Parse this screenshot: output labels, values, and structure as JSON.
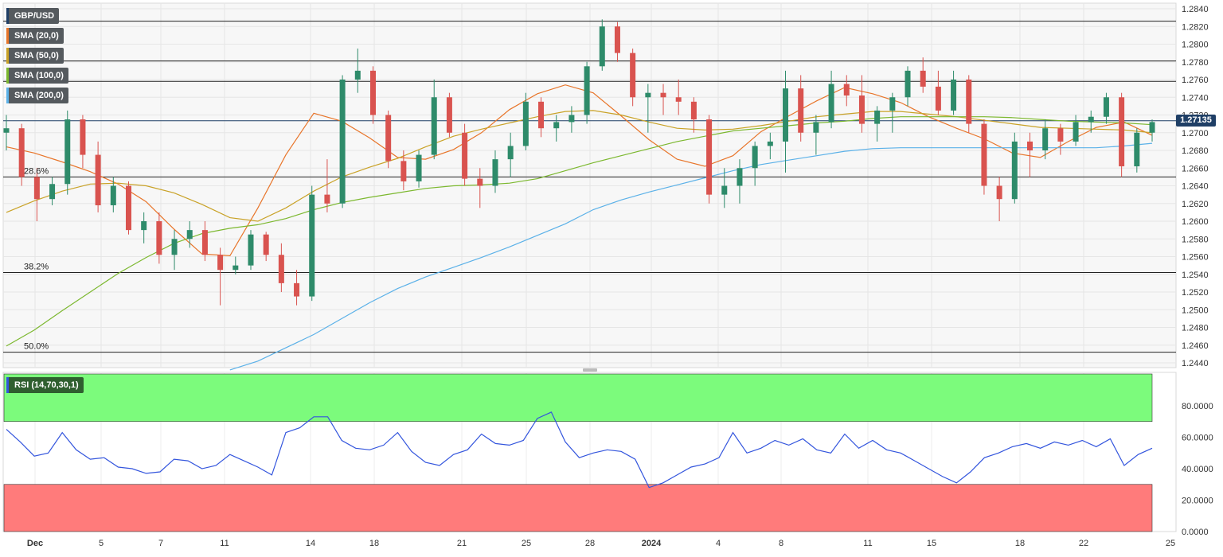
{
  "chart_data": [
    {
      "type": "candlestick",
      "title": "GBP/USD",
      "current_price": "1.27135",
      "x_tick_labels": [
        "Dec",
        "5",
        "7",
        "11",
        "14",
        "18",
        "21",
        "25",
        "28",
        "2024",
        "4",
        "8",
        "11",
        "15",
        "18",
        "22",
        "25"
      ],
      "y_ticks": [
        "1.2840",
        "1.2820",
        "1.2800",
        "1.2780",
        "1.2760",
        "1.2740",
        "1.2720",
        "1.2700",
        "1.2680",
        "1.2660",
        "1.2640",
        "1.2620",
        "1.2600",
        "1.2580",
        "1.2560",
        "1.2540",
        "1.2520",
        "1.2500",
        "1.2480",
        "1.2460",
        "1.2440"
      ],
      "ylim": [
        1.2435,
        1.2845
      ],
      "horizontal_levels": [
        1.2826,
        1.2781,
        1.2758,
        1.265,
        1.2542,
        1.2452
      ],
      "fib_labels": [
        {
          "label": "28.6%",
          "level": 1.265
        },
        {
          "label": "38.2%",
          "level": 1.2542
        },
        {
          "label": "50.0%",
          "level": 1.2452
        }
      ],
      "grid": true,
      "legend_placement": "top-left",
      "series": [
        {
          "name": "SMA (20,0)",
          "color": "#e8752a",
          "values": [
            1.2684,
            1.2677,
            1.2667,
            1.2656,
            1.2642,
            1.2622,
            1.2591,
            1.2563,
            1.2561,
            1.2615,
            1.2675,
            1.2722,
            1.2713,
            1.2694,
            1.2672,
            1.267,
            1.2681,
            1.27,
            1.2726,
            1.2744,
            1.2754,
            1.2745,
            1.2719,
            1.2692,
            1.267,
            1.2662,
            1.2674,
            1.2701,
            1.2719,
            1.2736,
            1.2751,
            1.2744,
            1.2734,
            1.2718,
            1.2705,
            1.2693,
            1.2677,
            1.2672,
            1.269,
            1.2706,
            1.2712,
            1.2697
          ]
        },
        {
          "name": "SMA (50,0)",
          "color": "#c9a227",
          "values": [
            1.261,
            1.2623,
            1.2634,
            1.2642,
            1.2643,
            1.264,
            1.2632,
            1.2619,
            1.2604,
            1.26,
            1.2615,
            1.2634,
            1.265,
            1.2661,
            1.2671,
            1.2684,
            1.2696,
            1.2704,
            1.2711,
            1.2718,
            1.2724,
            1.2725,
            1.272,
            1.2712,
            1.2705,
            1.2703,
            1.2704,
            1.2708,
            1.2713,
            1.2718,
            1.2721,
            1.2724,
            1.2724,
            1.2721,
            1.2718,
            1.2714,
            1.271,
            1.2706,
            1.2705,
            1.2704,
            1.2703,
            1.27
          ]
        },
        {
          "name": "SMA (100,0)",
          "color": "#7cb82f",
          "values": [
            1.2459,
            1.2477,
            1.2499,
            1.252,
            1.2541,
            1.2559,
            1.2575,
            1.2586,
            1.2592,
            1.2596,
            1.2603,
            1.2613,
            1.2621,
            1.2627,
            1.2632,
            1.2637,
            1.264,
            1.2641,
            1.2643,
            1.2648,
            1.2657,
            1.2666,
            1.2674,
            1.2682,
            1.269,
            1.2696,
            1.2702,
            1.2705,
            1.2708,
            1.2711,
            1.2713,
            1.2716,
            1.2718,
            1.2718,
            1.2718,
            1.2718,
            1.2717,
            1.2715,
            1.2713,
            1.2712,
            1.2711,
            1.2709
          ]
        },
        {
          "name": "SMA (200,0)",
          "color": "#5bb1e8",
          "values": [
            null,
            null,
            null,
            null,
            null,
            null,
            null,
            null,
            1.2432,
            1.2442,
            1.2457,
            1.2472,
            1.249,
            1.2508,
            1.2524,
            1.2537,
            1.2548,
            1.2559,
            1.2571,
            1.2584,
            1.2597,
            1.2613,
            1.2624,
            1.2633,
            1.2641,
            1.2649,
            1.2657,
            1.2664,
            1.2669,
            1.2674,
            1.2679,
            1.2682,
            1.2683,
            1.2683,
            1.2683,
            1.2683,
            1.2683,
            1.2683,
            1.2683,
            1.2683,
            1.2685,
            1.2688
          ]
        }
      ],
      "candles": [
        [
          1.27,
          1.272,
          1.268,
          1.2705
        ],
        [
          1.2705,
          1.271,
          1.264,
          1.265
        ],
        [
          1.265,
          1.266,
          1.26,
          1.2625
        ],
        [
          1.2625,
          1.265,
          1.2618,
          1.2642
        ],
        [
          1.2642,
          1.2725,
          1.263,
          1.2715
        ],
        [
          1.2715,
          1.272,
          1.266,
          1.2675
        ],
        [
          1.2675,
          1.269,
          1.261,
          1.2618
        ],
        [
          1.2618,
          1.265,
          1.261,
          1.264
        ],
        [
          1.264,
          1.2645,
          1.2585,
          1.259
        ],
        [
          1.259,
          1.261,
          1.2575,
          1.26
        ],
        [
          1.26,
          1.261,
          1.2552,
          1.2562
        ],
        [
          1.2562,
          1.259,
          1.2545,
          1.258
        ],
        [
          1.258,
          1.26,
          1.257,
          1.259
        ],
        [
          1.259,
          1.26,
          1.2555,
          1.2562
        ],
        [
          1.2562,
          1.257,
          1.2505,
          1.2545
        ],
        [
          1.2545,
          1.256,
          1.254,
          1.255
        ],
        [
          1.255,
          1.259,
          1.2545,
          1.2585
        ],
        [
          1.2585,
          1.2588,
          1.2555,
          1.2562
        ],
        [
          1.2562,
          1.2575,
          1.252,
          1.253
        ],
        [
          1.253,
          1.2545,
          1.2505,
          1.2515
        ],
        [
          1.2515,
          1.264,
          1.251,
          1.263
        ],
        [
          1.263,
          1.267,
          1.261,
          1.262
        ],
        [
          1.262,
          1.2765,
          1.2615,
          1.276
        ],
        [
          1.276,
          1.2795,
          1.2745,
          1.277
        ],
        [
          1.277,
          1.2775,
          1.271,
          1.272
        ],
        [
          1.272,
          1.2725,
          1.266,
          1.2668
        ],
        [
          1.2668,
          1.268,
          1.2635,
          1.2645
        ],
        [
          1.2645,
          1.268,
          1.2638,
          1.2675
        ],
        [
          1.2675,
          1.276,
          1.267,
          1.274
        ],
        [
          1.274,
          1.2745,
          1.2695,
          1.27
        ],
        [
          1.27,
          1.271,
          1.264,
          1.2648
        ],
        [
          1.2648,
          1.266,
          1.2615,
          1.264
        ],
        [
          1.264,
          1.268,
          1.2632,
          1.267
        ],
        [
          1.267,
          1.27,
          1.265,
          1.2685
        ],
        [
          1.2685,
          1.2745,
          1.268,
          1.2735
        ],
        [
          1.2735,
          1.274,
          1.2695,
          1.2705
        ],
        [
          1.2705,
          1.272,
          1.269,
          1.2712
        ],
        [
          1.2712,
          1.273,
          1.27,
          1.272
        ],
        [
          1.272,
          1.278,
          1.271,
          1.2775
        ],
        [
          1.2775,
          1.2828,
          1.277,
          1.282
        ],
        [
          1.282,
          1.2825,
          1.278,
          1.279
        ],
        [
          1.279,
          1.2795,
          1.273,
          1.274
        ],
        [
          1.274,
          1.2755,
          1.27,
          1.2745
        ],
        [
          1.2745,
          1.2755,
          1.272,
          1.274
        ],
        [
          1.274,
          1.276,
          1.272,
          1.2735
        ],
        [
          1.2735,
          1.274,
          1.27,
          1.2715
        ],
        [
          1.2715,
          1.272,
          1.262,
          1.263
        ],
        [
          1.263,
          1.266,
          1.2615,
          1.264
        ],
        [
          1.264,
          1.267,
          1.262,
          1.266
        ],
        [
          1.266,
          1.269,
          1.264,
          1.2685
        ],
        [
          1.2685,
          1.27,
          1.267,
          1.269
        ],
        [
          1.269,
          1.277,
          1.2655,
          1.275
        ],
        [
          1.275,
          1.2765,
          1.269,
          1.27
        ],
        [
          1.27,
          1.272,
          1.2675,
          1.2712
        ],
        [
          1.2712,
          1.277,
          1.2705,
          1.2755
        ],
        [
          1.2755,
          1.2765,
          1.273,
          1.2742
        ],
        [
          1.2742,
          1.2765,
          1.27,
          1.271
        ],
        [
          1.271,
          1.273,
          1.269,
          1.2725
        ],
        [
          1.2725,
          1.2745,
          1.27,
          1.274
        ],
        [
          1.274,
          1.2775,
          1.273,
          1.277
        ],
        [
          1.277,
          1.2785,
          1.2745,
          1.2752
        ],
        [
          1.2752,
          1.277,
          1.272,
          1.2725
        ],
        [
          1.2725,
          1.277,
          1.272,
          1.276
        ],
        [
          1.276,
          1.2765,
          1.27,
          1.271
        ],
        [
          1.271,
          1.2715,
          1.263,
          1.264
        ],
        [
          1.264,
          1.265,
          1.26,
          1.2625
        ],
        [
          1.2625,
          1.27,
          1.262,
          1.269
        ],
        [
          1.269,
          1.27,
          1.265,
          1.268
        ],
        [
          1.268,
          1.2715,
          1.267,
          1.2705
        ],
        [
          1.2705,
          1.271,
          1.2675,
          1.269
        ],
        [
          1.269,
          1.272,
          1.2685,
          1.2712
        ],
        [
          1.2712,
          1.2725,
          1.27,
          1.2718
        ],
        [
          1.2718,
          1.2745,
          1.271,
          1.274
        ],
        [
          1.274,
          1.2745,
          1.265,
          1.2662
        ],
        [
          1.2662,
          1.2705,
          1.2655,
          1.27
        ],
        [
          1.27,
          1.2715,
          1.269,
          1.2712
        ]
      ]
    },
    {
      "type": "line",
      "title": "RSI (14,70,30,1)",
      "ylim": [
        0,
        100
      ],
      "y_ticks": [
        "80.0000",
        "60.0000",
        "40.0000",
        "20.0000",
        "0.0000"
      ],
      "overbought": 70,
      "oversold": 30,
      "series": [
        {
          "name": "RSI (14,70,30,1)",
          "color": "#3355dd",
          "values": [
            65,
            57,
            48,
            50,
            63,
            52,
            46,
            47,
            41,
            40,
            37,
            38,
            46,
            45,
            40,
            42,
            49,
            45,
            41,
            36,
            63,
            66,
            73,
            73,
            58,
            53,
            52,
            55,
            63,
            51,
            44,
            42,
            49,
            52,
            62,
            56,
            55,
            58,
            72,
            76,
            57,
            47,
            50,
            52,
            51,
            46,
            28,
            31,
            36,
            41,
            43,
            47,
            63,
            50,
            53,
            58,
            55,
            59,
            52,
            50,
            62,
            53,
            58,
            52,
            50,
            45,
            40,
            35,
            31,
            38,
            47,
            50,
            54,
            56,
            53,
            57,
            55,
            58,
            54,
            59,
            42,
            49,
            53
          ]
        }
      ]
    }
  ]
}
